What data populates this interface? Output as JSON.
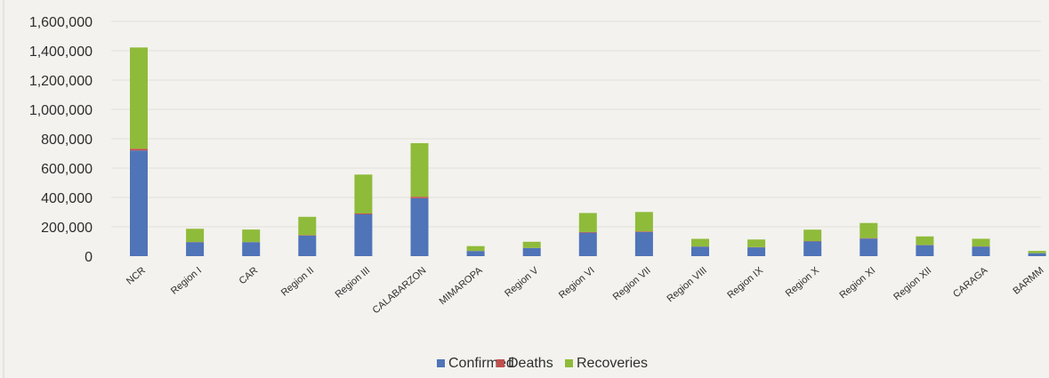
{
  "chart_data": {
    "type": "bar",
    "stacked": true,
    "title": "",
    "xlabel": "",
    "ylabel": "",
    "ylim": [
      0,
      1600000
    ],
    "yticks": [
      "0",
      "200,000",
      "400,000",
      "600,000",
      "800,000",
      "1,000,000",
      "1,200,000",
      "1,400,000",
      "1,600,000"
    ],
    "grid": true,
    "legend_position": "bottom",
    "categories": [
      "NCR",
      "Region I",
      "CAR",
      "Region II",
      "Region III",
      "CALABARZON",
      "MIMAROPA",
      "Region V",
      "Region VI",
      "Region VII",
      "Region VIII",
      "Region IX",
      "Region X",
      "Region XI",
      "Region XII",
      "CARAGA",
      "BARMM"
    ],
    "series": [
      {
        "name": "Confirmed",
        "color": "#4f74b8",
        "values": [
          720000,
          95000,
          95000,
          140000,
          285000,
          395000,
          35000,
          55000,
          160000,
          165000,
          65000,
          60000,
          100000,
          120000,
          75000,
          65000,
          20000
        ]
      },
      {
        "name": "Deaths",
        "color": "#c0504d",
        "values": [
          12000,
          1500,
          1200,
          3000,
          6000,
          10000,
          500,
          1000,
          4000,
          4000,
          1000,
          1500,
          2500,
          3000,
          1500,
          1500,
          500
        ]
      },
      {
        "name": "Recoveries",
        "color": "#8fbb3a",
        "values": [
          690000,
          90000,
          85000,
          125000,
          265000,
          365000,
          33000,
          42000,
          130000,
          132000,
          52000,
          52000,
          78000,
          103000,
          58000,
          52000,
          15000
        ]
      }
    ]
  }
}
